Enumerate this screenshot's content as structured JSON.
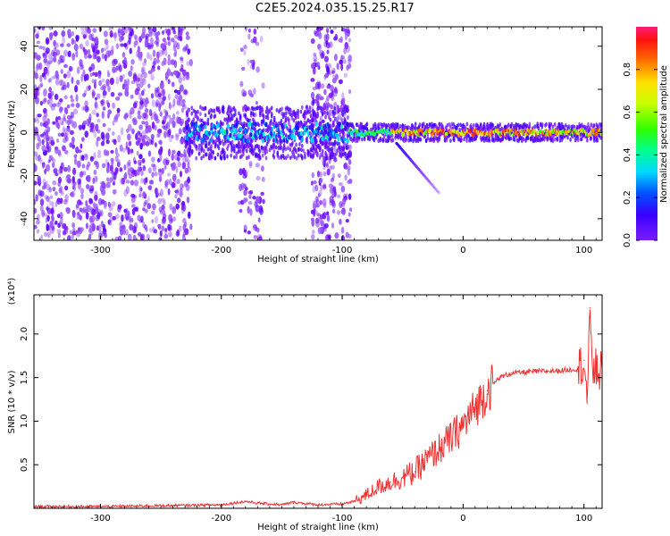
{
  "title": "C2E5.2024.035.15.25.R17",
  "colors": {
    "accent": "#ee3333",
    "spectrogram_low": "#6a00ff",
    "spectrogram_high": "#ff1a5a"
  },
  "chart_data": [
    {
      "type": "heatmap",
      "title": "C2E5.2024.035.15.25.R17",
      "xlabel": "Height of straight line (km)",
      "ylabel": "Frequency (Hz)",
      "xlim": [
        -355,
        115
      ],
      "ylim": [
        -50,
        49
      ],
      "xticks": [
        -300,
        -200,
        -100,
        0,
        100
      ],
      "yticks": [
        -40,
        -20,
        0,
        20,
        40
      ],
      "colorbar": {
        "label": "Normalized spectral amplitude",
        "range": [
          0.0,
          1.0
        ],
        "ticks": [
          0.0,
          0.2,
          0.4,
          0.6,
          0.8
        ],
        "colormap": "rainbow (violet → blue → cyan → green → yellow → orange → red)"
      },
      "features": [
        {
          "description": "broadband noise across all frequencies",
          "x_range": [
            -355,
            -225
          ],
          "level": 0.1
        },
        {
          "description": "noise band",
          "x_range": [
            -185,
            -165
          ],
          "level": 0.05
        },
        {
          "description": "noise band",
          "x_range": [
            -125,
            -93
          ],
          "level": 0.1
        },
        {
          "description": "carrier near 0 Hz",
          "x_range": [
            -230,
            -95
          ],
          "freq": 0,
          "level": 0.35
        },
        {
          "description": "carrier near 0 Hz",
          "x_range": [
            -95,
            115
          ],
          "freq": 0,
          "level": 0.95
        },
        {
          "description": "descending branch",
          "x_from": [
            -55,
            -5
          ],
          "x_to": [
            -20,
            -28
          ],
          "level": 0.2
        }
      ]
    },
    {
      "type": "line",
      "xlabel": "Height of straight line (km)",
      "ylabel": "SNR (10 * v/v)",
      "y_scale_label": "(x10⁴)",
      "xlim": [
        -355,
        115
      ],
      "ylim": [
        0,
        2.45
      ],
      "xticks": [
        -300,
        -200,
        -100,
        0,
        100
      ],
      "yticks": [
        0.5,
        1.0,
        1.5,
        2.0
      ],
      "series": [
        {
          "color": "#ee3333",
          "x": [
            -355,
            -300,
            -250,
            -200,
            -190,
            -180,
            -170,
            -150,
            -140,
            -120,
            -100,
            -90,
            -80,
            -70,
            -60,
            -50,
            -40,
            -30,
            -20,
            -10,
            0,
            10,
            20,
            30,
            40,
            60,
            80,
            95,
            100,
            103,
            105,
            108,
            110,
            115
          ],
          "y": [
            0.02,
            0.02,
            0.03,
            0.04,
            0.06,
            0.08,
            0.06,
            0.04,
            0.07,
            0.04,
            0.05,
            0.08,
            0.15,
            0.25,
            0.3,
            0.35,
            0.42,
            0.55,
            0.68,
            0.8,
            0.95,
            1.15,
            1.35,
            1.5,
            1.55,
            1.57,
            1.58,
            1.6,
            1.7,
            1.2,
            2.3,
            1.5,
            1.6,
            1.55
          ]
        }
      ]
    }
  ]
}
